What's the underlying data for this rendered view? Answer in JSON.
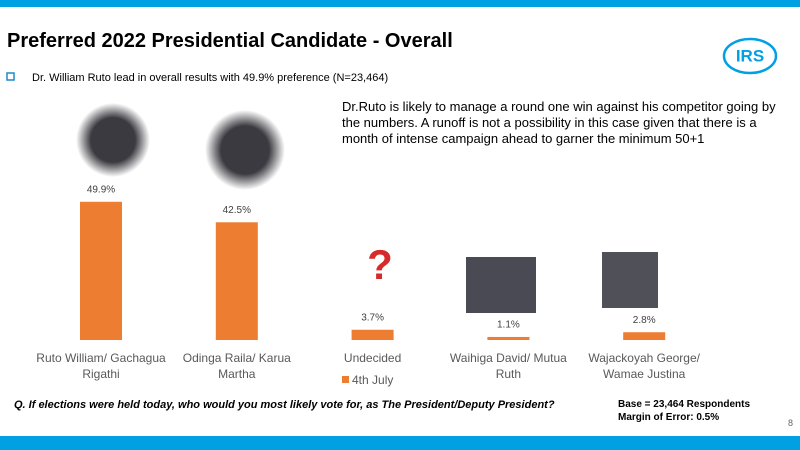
{
  "header": {
    "title": "Preferred 2022  Presidential  Candidate - Overall",
    "subtitle": "Dr. William Ruto lead in overall results with 49.9% preference (N=23,464)"
  },
  "logo": "IRS",
  "chart_data": {
    "type": "bar",
    "annotation": "Dr.Ruto is likely to manage a round one win against his competitor going by the numbers. A runoff is  not a possibility in this case given that there is a  month of intense campaign ahead to garner the minimum 50+1",
    "categories": [
      "Ruto William/ Gachagua Rigathi",
      "Odinga Raila/ Karua Martha",
      "Undecided",
      "Waihiga David/ Mutua Ruth",
      "Wajackoyah George/ Wamae Justina"
    ],
    "series": [
      {
        "name": "4th July",
        "color": "#ed7d31",
        "values": [
          49.9,
          42.5,
          3.7,
          1.1,
          2.8
        ],
        "value_labels": [
          "49.9%",
          "42.5%",
          "3.7%",
          "1.1%",
          "2.8%"
        ]
      }
    ]
  },
  "footer": {
    "question": "Q. If elections were held today, who would you most likely vote for, as The President/Deputy President?",
    "base": "Base = 23,464 Respondents",
    "margin": "Margin of Error: 0.5%",
    "page": "8"
  }
}
